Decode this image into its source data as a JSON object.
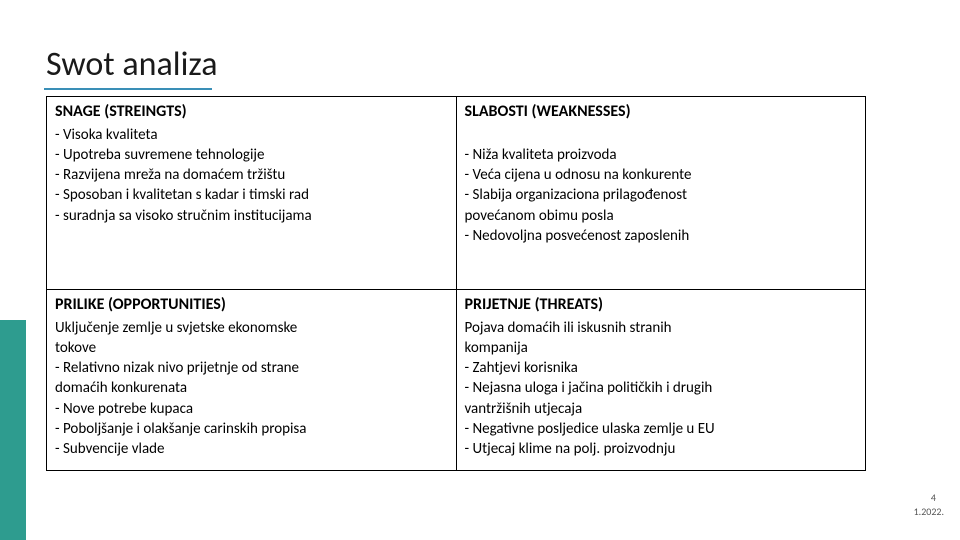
{
  "accent_color": "#2e9c8f",
  "underline_color": "#3a8fb7",
  "title": "Swot analiza",
  "footer": {
    "num": "4",
    "date": "1.2022."
  },
  "cells": {
    "strengths": {
      "head": "SNAGE (STREINGTS)",
      "lines": [
        "- Visoka kvaliteta",
        "- Upotreba suvremene  tehnologije",
        "- Razvijena mreža na domaćem tržištu",
        "- Sposoban i kvalitetan s kadar i timski rad",
        "-   suradnja sa visoko stručnim institucijama"
      ]
    },
    "weaknesses": {
      "head": "SLABOSTI (WEAKNESSES)",
      "lines": [
        "",
        "- Niža kvaliteta proizvoda",
        "- Veća cijena u odnosu na konkurente",
        "- Slabija organizaciona prilagođenost",
        "povećanom obimu posla",
        "- Nedovoljna posvećenost zaposlenih"
      ]
    },
    "opportunities": {
      "head": "PRILIKE (OPPORTUNITIES)",
      "lines": [
        "Uključenje zemlje u svjetske ekonomske",
        "tokove",
        "- Relativno nizak nivo prijetnje od strane",
        "domaćih konkurenata",
        "- Nove potrebe kupaca",
        "- Poboljšanje i olakšanje carinskih propisa",
        "- Subvencije vlade"
      ]
    },
    "threats": {
      "head": "PRIJETNJE (THREATS)",
      "lines": [
        "Pojava domaćih ili iskusnih stranih",
        "  kompanija",
        "- Zahtjevi korisnika",
        "- Nejasna uloga i jačina političkih i drugih",
        "vantržišnih utjecaja",
        "-    Negativne posljedice ulaska zemlje u EU",
        "-    Utjecaj klime na polj. proizvodnju"
      ]
    }
  }
}
